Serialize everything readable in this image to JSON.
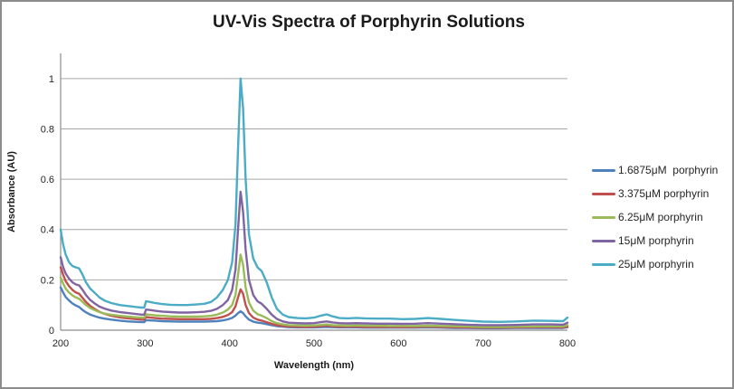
{
  "chart": {
    "title": "UV-Vis Spectra of Porphyrin Solutions",
    "xlabel": "Wavelength (nm)",
    "ylabel": "Absorbance (AU)"
  },
  "colors": {
    "background": "#FFFFFF",
    "frame_border": "#8C8C8C",
    "gridline": "#A6A6A6",
    "axis_line": "#8C8C8C",
    "text": "#262626"
  },
  "chart_data": {
    "type": "line",
    "title": "UV-Vis Spectra of Porphyrin Solutions",
    "xlabel": "Wavelength (nm)",
    "ylabel": "Absorbance (AU)",
    "xlim": [
      200,
      800
    ],
    "ylim": [
      0,
      1.1
    ],
    "xticks": [
      200,
      300,
      400,
      500,
      600,
      700,
      800
    ],
    "xtick_labels": [
      "200",
      "300",
      "400",
      "500",
      "600",
      "700",
      "800"
    ],
    "yticks": [
      0,
      0.2,
      0.4,
      0.6,
      0.8,
      1
    ],
    "ytick_labels": [
      "0",
      "0.2",
      "0.4",
      "0.6",
      "0.8",
      "1"
    ],
    "grid": "horizontal",
    "legend_position": "right",
    "soret_peak_nm": 413,
    "x": [
      200,
      203,
      206,
      210,
      214,
      218,
      222,
      226,
      230,
      235,
      240,
      246,
      252,
      260,
      270,
      280,
      290,
      296,
      299,
      301,
      306,
      312,
      320,
      330,
      340,
      350,
      360,
      370,
      378,
      385,
      392,
      398,
      403,
      407,
      410,
      413,
      416,
      419,
      423,
      428,
      433,
      438,
      444,
      450,
      456,
      463,
      470,
      480,
      490,
      500,
      508,
      515,
      522,
      530,
      540,
      550,
      560,
      575,
      590,
      605,
      620,
      635,
      650,
      665,
      680,
      700,
      720,
      740,
      760,
      780,
      795,
      800
    ],
    "series": [
      {
        "name": "1.6875μM  porphyrin",
        "color": "#4F81BD",
        "values": [
          0.17,
          0.15,
          0.132,
          0.118,
          0.106,
          0.098,
          0.092,
          0.08,
          0.071,
          0.062,
          0.056,
          0.05,
          0.046,
          0.042,
          0.038,
          0.035,
          0.033,
          0.032,
          0.032,
          0.04,
          0.039,
          0.038,
          0.036,
          0.035,
          0.034,
          0.034,
          0.034,
          0.034,
          0.035,
          0.036,
          0.039,
          0.043,
          0.049,
          0.058,
          0.068,
          0.075,
          0.068,
          0.055,
          0.042,
          0.034,
          0.03,
          0.028,
          0.024,
          0.02,
          0.016,
          0.014,
          0.012,
          0.011,
          0.011,
          0.011,
          0.012,
          0.013,
          0.012,
          0.011,
          0.011,
          0.011,
          0.01,
          0.01,
          0.01,
          0.01,
          0.01,
          0.011,
          0.01,
          0.009,
          0.009,
          0.008,
          0.008,
          0.009,
          0.009,
          0.009,
          0.009,
          0.012
        ]
      },
      {
        "name": "3.375μM porphyrin",
        "color": "#C0504D",
        "values": [
          0.25,
          0.22,
          0.195,
          0.175,
          0.16,
          0.15,
          0.145,
          0.128,
          0.112,
          0.096,
          0.085,
          0.073,
          0.065,
          0.057,
          0.051,
          0.047,
          0.044,
          0.042,
          0.042,
          0.052,
          0.05,
          0.048,
          0.046,
          0.045,
          0.044,
          0.044,
          0.044,
          0.044,
          0.045,
          0.048,
          0.053,
          0.06,
          0.072,
          0.095,
          0.13,
          0.162,
          0.145,
          0.1,
          0.068,
          0.05,
          0.042,
          0.038,
          0.032,
          0.025,
          0.02,
          0.017,
          0.015,
          0.014,
          0.013,
          0.014,
          0.016,
          0.018,
          0.016,
          0.014,
          0.014,
          0.014,
          0.013,
          0.013,
          0.013,
          0.012,
          0.013,
          0.014,
          0.013,
          0.012,
          0.011,
          0.01,
          0.01,
          0.011,
          0.012,
          0.012,
          0.011,
          0.015
        ]
      },
      {
        "name": "6.25μM porphyrin",
        "color": "#9BBB59",
        "values": [
          0.21,
          0.185,
          0.165,
          0.15,
          0.138,
          0.13,
          0.125,
          0.112,
          0.1,
          0.088,
          0.08,
          0.072,
          0.066,
          0.061,
          0.057,
          0.054,
          0.051,
          0.05,
          0.05,
          0.063,
          0.061,
          0.059,
          0.057,
          0.055,
          0.054,
          0.054,
          0.054,
          0.055,
          0.057,
          0.062,
          0.07,
          0.082,
          0.1,
          0.14,
          0.22,
          0.3,
          0.26,
          0.17,
          0.11,
          0.078,
          0.064,
          0.058,
          0.048,
          0.036,
          0.028,
          0.023,
          0.02,
          0.019,
          0.018,
          0.019,
          0.021,
          0.023,
          0.02,
          0.019,
          0.018,
          0.019,
          0.018,
          0.018,
          0.017,
          0.017,
          0.017,
          0.018,
          0.017,
          0.016,
          0.015,
          0.013,
          0.013,
          0.014,
          0.015,
          0.015,
          0.015,
          0.02
        ]
      },
      {
        "name": "15μM porphyrin",
        "color": "#8064A2",
        "values": [
          0.29,
          0.25,
          0.225,
          0.205,
          0.19,
          0.182,
          0.178,
          0.16,
          0.14,
          0.12,
          0.107,
          0.094,
          0.086,
          0.078,
          0.072,
          0.068,
          0.064,
          0.062,
          0.062,
          0.082,
          0.08,
          0.077,
          0.074,
          0.072,
          0.07,
          0.07,
          0.071,
          0.073,
          0.077,
          0.085,
          0.1,
          0.12,
          0.16,
          0.24,
          0.4,
          0.55,
          0.47,
          0.32,
          0.2,
          0.14,
          0.115,
          0.105,
          0.085,
          0.062,
          0.045,
          0.035,
          0.03,
          0.028,
          0.027,
          0.028,
          0.032,
          0.035,
          0.031,
          0.028,
          0.027,
          0.028,
          0.027,
          0.026,
          0.026,
          0.025,
          0.026,
          0.028,
          0.026,
          0.024,
          0.022,
          0.02,
          0.02,
          0.021,
          0.023,
          0.023,
          0.022,
          0.03
        ]
      },
      {
        "name": "25μM porphyrin",
        "color": "#4BACC6",
        "values": [
          0.4,
          0.34,
          0.3,
          0.27,
          0.255,
          0.25,
          0.245,
          0.22,
          0.19,
          0.165,
          0.15,
          0.13,
          0.118,
          0.108,
          0.1,
          0.096,
          0.092,
          0.09,
          0.09,
          0.115,
          0.112,
          0.108,
          0.104,
          0.101,
          0.1,
          0.1,
          0.102,
          0.105,
          0.112,
          0.13,
          0.16,
          0.2,
          0.27,
          0.42,
          0.72,
          1.0,
          0.88,
          0.6,
          0.38,
          0.285,
          0.25,
          0.235,
          0.19,
          0.13,
          0.085,
          0.062,
          0.052,
          0.048,
          0.047,
          0.05,
          0.058,
          0.063,
          0.055,
          0.048,
          0.047,
          0.049,
          0.047,
          0.046,
          0.046,
          0.044,
          0.045,
          0.048,
          0.045,
          0.041,
          0.038,
          0.034,
          0.033,
          0.035,
          0.038,
          0.037,
          0.036,
          0.05
        ]
      }
    ]
  }
}
